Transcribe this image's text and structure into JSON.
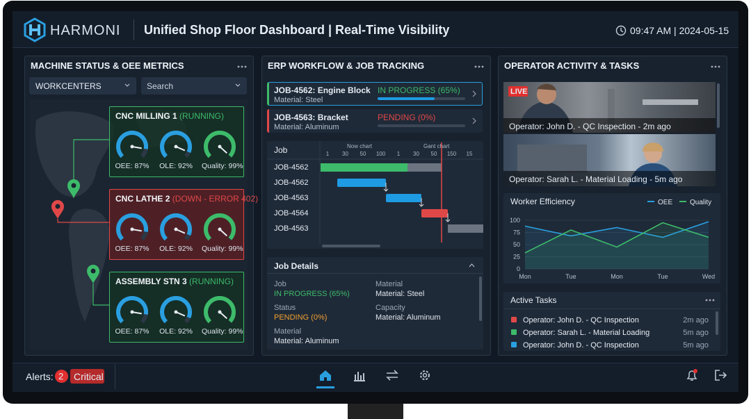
{
  "header": {
    "brand": "HARMONI",
    "title": "Unified Shop Floor Dashboard | Real-Time Visibility",
    "datetime": "09:47 AM | 2024-05-15"
  },
  "machines": {
    "title": "MACHINE STATUS & OEE METRICS",
    "filter": "WORKCENTERS",
    "search": "Search",
    "cards": [
      {
        "name": "CNC MILLING 1",
        "status": "(RUNNING)",
        "color": "#3dbb6a",
        "gauges": [
          {
            "label": "OEE: 87%",
            "value": 87,
            "color": "#2a9fe0"
          },
          {
            "label": "OLE: 92%",
            "value": 92,
            "color": "#2a9fe0"
          },
          {
            "label": "Quality: 99%",
            "value": 99,
            "color": "#3dbb6a"
          }
        ]
      },
      {
        "name": "CNC LATHE 2",
        "status": "(DOWN - ERROR 402)",
        "color": "#e04848",
        "gauges": [
          {
            "label": "OEE: 87%",
            "value": 87,
            "color": "#2a9fe0"
          },
          {
            "label": "OLE: 92%",
            "value": 92,
            "color": "#2a9fe0"
          },
          {
            "label": "Quality: 99%",
            "value": 99,
            "color": "#3dbb6a"
          }
        ]
      },
      {
        "name": "ASSEMBLY STN 3",
        "status": "(RUNNING)",
        "color": "#3dbb6a",
        "gauges": [
          {
            "label": "OEE: 87%",
            "value": 87,
            "color": "#2a9fe0"
          },
          {
            "label": "OLE: 92%",
            "value": 92,
            "color": "#2a9fe0"
          },
          {
            "label": "Quality: 99%",
            "value": 99,
            "color": "#3dbb6a"
          }
        ]
      }
    ]
  },
  "erp": {
    "title": "ERP WORKFLOW & JOB TRACKING",
    "jobs": [
      {
        "name": "JOB-4562: Engine Block",
        "material": "Material: Steel",
        "status": "IN PROGRESS (65%)",
        "progress": 65,
        "color": "#3dbb6a"
      },
      {
        "name": "JOB-4563: Bracket",
        "material": "Material: Aluminum",
        "status": "PENDING (0%)",
        "progress": 0,
        "color": "#e04848"
      }
    ],
    "gantt": {
      "column": "Job",
      "groups": [
        "Now chart",
        "Gant chart"
      ],
      "ticks": [
        "1",
        "30",
        "50",
        "100",
        "1",
        "30",
        "50",
        "150",
        "15"
      ],
      "rows": [
        "JOB-4562",
        "JOB-4562",
        "JOB-4563",
        "JOB-4564",
        "JOB-4563"
      ]
    },
    "details": {
      "title": "Job Details",
      "fields": [
        {
          "label": "Job",
          "value": "IN PROGRESS (65%)",
          "color": "#3dbb6a"
        },
        {
          "label": "Material",
          "value": "Material: Steel"
        },
        {
          "label": "Status",
          "value": "PENDING (0%)",
          "color": "#f0a030"
        },
        {
          "label": "Capacity",
          "value": "Material: Aluminum"
        },
        {
          "label": "Material",
          "value": "Material: Aluminum"
        }
      ]
    }
  },
  "operator": {
    "title": "OPERATOR ACTIVITY & TASKS",
    "live": "LIVE",
    "feeds": [
      "Operator: John D. - QC Inspection - 2m ago",
      "Operator: Sarah L. - Material Loading - 5m ago"
    ],
    "efficiency": {
      "type": "line",
      "title": "Worker Efficiency",
      "categories": [
        "Mon",
        "Tue",
        "Mon",
        "Tue",
        "Wed"
      ],
      "ylim": [
        0,
        100
      ],
      "yticks": [
        0,
        25,
        50,
        75,
        100
      ],
      "grid": true,
      "series": [
        {
          "name": "OEE",
          "color": "#2a9fe0",
          "values": [
            88,
            68,
            85,
            65,
            97
          ]
        },
        {
          "name": "Quality",
          "color": "#3dbb6a",
          "values": [
            33,
            80,
            45,
            95,
            65
          ]
        }
      ]
    },
    "tasks": {
      "title": "Active Tasks",
      "items": [
        {
          "text": "Operator: John D. - QC Inspection",
          "time": "2m ago",
          "color": "#e04848"
        },
        {
          "text": "Operator: Sarah L. - Material Loading",
          "time": "5m ago",
          "color": "#3dbb6a"
        },
        {
          "text": "Operator: John D. - QC Inspection",
          "time": "5m ago",
          "color": "#2a9fe0"
        }
      ]
    }
  },
  "footer": {
    "alerts": "Alerts:",
    "count": "2",
    "level": "Critical"
  }
}
